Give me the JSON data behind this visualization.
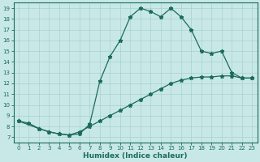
{
  "xlabel": "Humidex (Indice chaleur)",
  "background_color": "#c8e8e8",
  "line_color": "#1a6b5a",
  "grid_color": "#a8d0d0",
  "xlim": [
    -0.5,
    23.5
  ],
  "ylim": [
    6.5,
    19.5
  ],
  "yticks": [
    7,
    8,
    9,
    10,
    11,
    12,
    13,
    14,
    15,
    16,
    17,
    18,
    19
  ],
  "xticks": [
    0,
    1,
    2,
    3,
    4,
    5,
    6,
    7,
    8,
    9,
    10,
    11,
    12,
    13,
    14,
    15,
    16,
    17,
    18,
    19,
    20,
    21,
    22,
    23
  ],
  "line_straight_x": [
    0,
    2,
    3,
    4,
    5,
    6,
    7,
    8,
    9,
    10,
    11,
    12,
    13,
    14,
    15,
    16,
    17,
    18,
    19,
    20,
    21,
    22,
    23
  ],
  "line_straight_y": [
    8.5,
    7.8,
    7.5,
    7.3,
    7.2,
    7.5,
    8.0,
    8.5,
    9.0,
    9.5,
    10.0,
    10.5,
    11.0,
    11.5,
    12.0,
    12.3,
    12.5,
    12.6,
    12.6,
    12.7,
    12.7,
    12.5,
    12.5
  ],
  "line_curve_x": [
    0,
    1,
    2,
    3,
    4,
    5,
    6,
    7,
    8,
    9,
    10,
    11,
    12,
    13,
    14,
    15,
    16,
    17,
    18,
    19,
    20,
    21,
    22,
    23
  ],
  "line_curve_y": [
    8.5,
    8.3,
    7.8,
    7.5,
    7.3,
    7.2,
    7.3,
    8.2,
    12.2,
    14.5,
    16.0,
    18.2,
    19.0,
    18.7,
    18.2,
    19.0,
    18.2,
    17.0,
    15.0,
    14.8,
    15.0,
    13.0,
    12.5,
    12.5
  ]
}
